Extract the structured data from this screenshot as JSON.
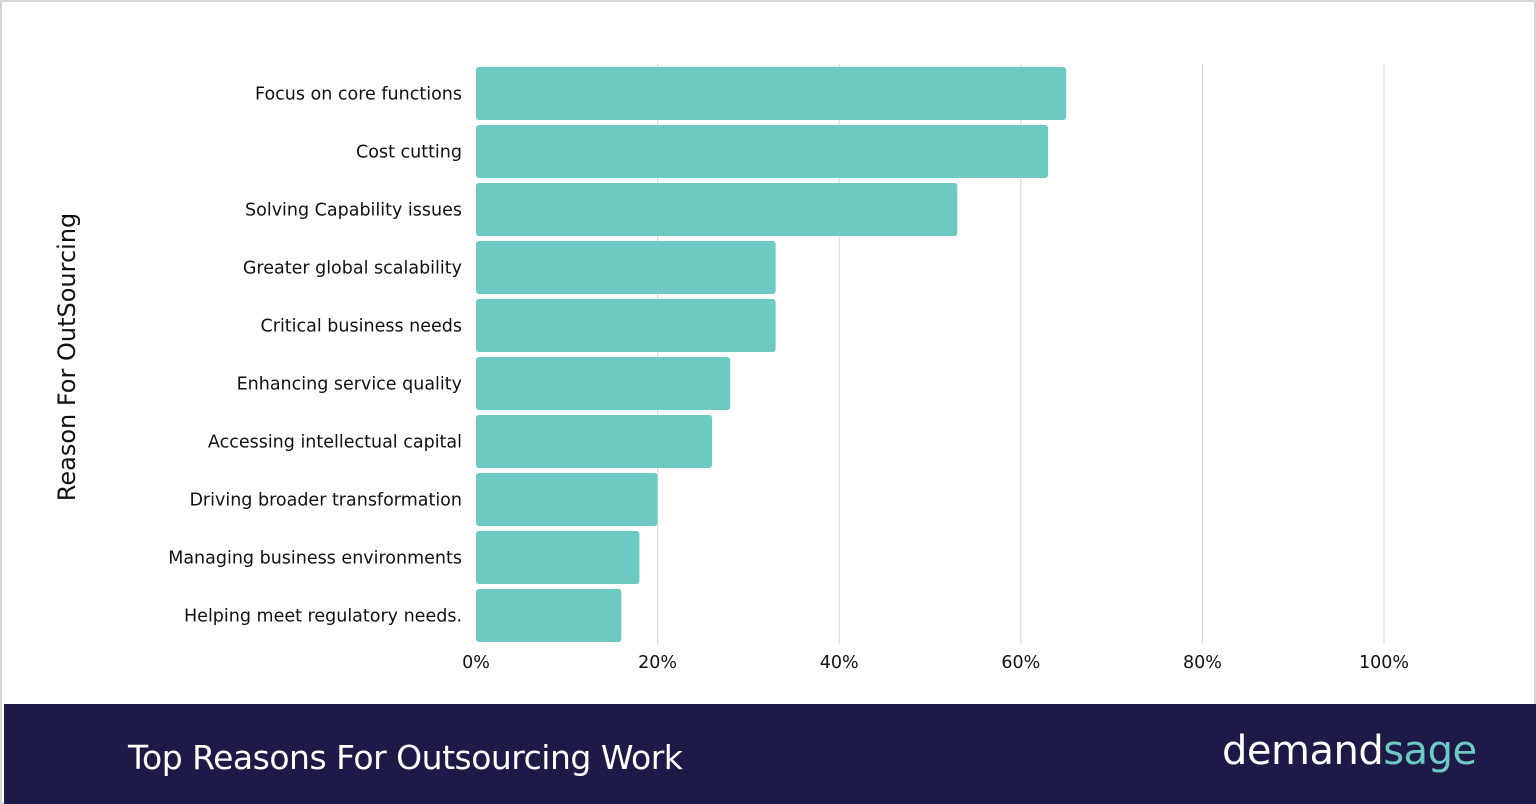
{
  "chart_data": {
    "type": "bar",
    "orientation": "horizontal",
    "title": "Top Reasons For Outsourcing Work",
    "xlabel": "",
    "ylabel": "Reason For OutSourcing",
    "categories": [
      "Focus on core functions",
      "Cost cutting",
      "Solving Capability issues",
      "Greater global scalability",
      "Critical business needs",
      "Enhancing service quality",
      "Accessing intellectual capital",
      "Driving broader transformation",
      "Managing business environments",
      "Helping meet regulatory needs."
    ],
    "values": [
      65,
      63,
      53,
      33,
      33,
      28,
      26,
      20,
      18,
      16
    ],
    "xlim": [
      0,
      100
    ],
    "xticks": [
      "0%",
      "20%",
      "40%",
      "60%",
      "80%",
      "100%"
    ],
    "grid": true,
    "bar_color": "#6dcac2"
  },
  "footer": {
    "title": "Top Reasons For Outsourcing Work",
    "background": "#1e1a47"
  },
  "logo": {
    "part1": "demand",
    "part2": "sage"
  }
}
